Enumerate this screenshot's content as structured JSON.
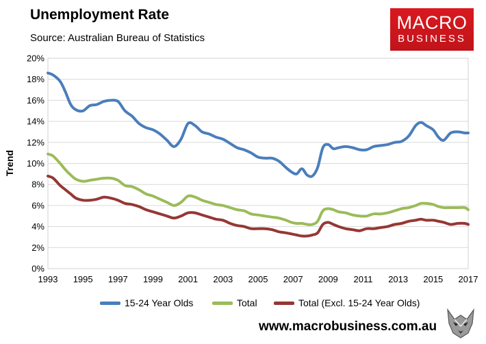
{
  "header": {
    "title": "Unemployment Rate",
    "subtitle": "Source: Australian Bureau of Statistics"
  },
  "logo": {
    "line1": "MACRO",
    "line2": "BUSINESS"
  },
  "footer": {
    "url": "www.macrobusiness.com.au"
  },
  "colors": {
    "youth": "#4a7ebb",
    "total": "#9bbb59",
    "excl": "#953735"
  },
  "chart_data": {
    "type": "line",
    "title": "Unemployment Rate",
    "ylabel": "Trend",
    "xlim": [
      1993,
      2017
    ],
    "ylim": [
      0,
      20
    ],
    "ytick_labels": [
      "0%",
      "2%",
      "4%",
      "6%",
      "8%",
      "10%",
      "12%",
      "14%",
      "16%",
      "18%",
      "20%"
    ],
    "xtick_labels": [
      "1993",
      "1995",
      "1997",
      "1999",
      "2001",
      "2003",
      "2005",
      "2007",
      "2009",
      "2011",
      "2013",
      "2015",
      "2017"
    ],
    "legend_position": "bottom",
    "series": [
      {
        "name": "15-24 Year Olds",
        "color": "#4a7ebb",
        "x": [
          1993,
          1993.3,
          1993.7,
          1994,
          1994.3,
          1994.6,
          1995,
          1995.4,
          1995.8,
          1996.2,
          1996.6,
          1997,
          1997.4,
          1997.8,
          1998.2,
          1998.6,
          1999,
          1999.4,
          1999.8,
          2000.2,
          2000.6,
          2001,
          2001.4,
          2001.8,
          2002.2,
          2002.6,
          2003,
          2003.4,
          2003.8,
          2004.2,
          2004.6,
          2005,
          2005.4,
          2005.8,
          2006.2,
          2006.6,
          2006.9,
          2007.2,
          2007.5,
          2007.8,
          2008.1,
          2008.4,
          2008.7,
          2009,
          2009.3,
          2009.6,
          2010,
          2010.4,
          2010.8,
          2011.2,
          2011.6,
          2012,
          2012.4,
          2012.8,
          2013.2,
          2013.6,
          2014,
          2014.3,
          2014.6,
          2015,
          2015.3,
          2015.6,
          2016,
          2016.4,
          2016.8,
          2017
        ],
        "y": [
          18.6,
          18.4,
          17.8,
          16.8,
          15.6,
          15.1,
          15.0,
          15.5,
          15.6,
          15.9,
          16.0,
          15.9,
          15.0,
          14.5,
          13.8,
          13.4,
          13.2,
          12.8,
          12.2,
          11.6,
          12.3,
          13.8,
          13.6,
          13.0,
          12.8,
          12.5,
          12.3,
          11.9,
          11.5,
          11.3,
          11.0,
          10.6,
          10.5,
          10.5,
          10.2,
          9.6,
          9.2,
          9.0,
          9.5,
          8.9,
          8.8,
          9.6,
          11.5,
          11.8,
          11.4,
          11.5,
          11.6,
          11.5,
          11.3,
          11.3,
          11.6,
          11.7,
          11.8,
          12.0,
          12.1,
          12.6,
          13.6,
          13.9,
          13.6,
          13.2,
          12.5,
          12.2,
          12.9,
          13.0,
          12.9,
          12.9
        ]
      },
      {
        "name": "Total",
        "color": "#9bbb59",
        "x": [
          1993,
          1993.3,
          1993.7,
          1994,
          1994.3,
          1994.6,
          1995,
          1995.4,
          1995.8,
          1996.2,
          1996.6,
          1997,
          1997.4,
          1997.8,
          1998.2,
          1998.6,
          1999,
          1999.4,
          1999.8,
          2000.2,
          2000.6,
          2001,
          2001.4,
          2001.8,
          2002.2,
          2002.6,
          2003,
          2003.4,
          2003.8,
          2004.2,
          2004.6,
          2005,
          2005.4,
          2005.8,
          2006.2,
          2006.6,
          2006.9,
          2007.2,
          2007.5,
          2007.8,
          2008.1,
          2008.4,
          2008.7,
          2009,
          2009.3,
          2009.6,
          2010,
          2010.4,
          2010.8,
          2011.2,
          2011.6,
          2012,
          2012.4,
          2012.8,
          2013.2,
          2013.6,
          2014,
          2014.3,
          2014.6,
          2015,
          2015.3,
          2015.6,
          2016,
          2016.4,
          2016.8,
          2017
        ],
        "y": [
          10.9,
          10.7,
          10.0,
          9.4,
          8.9,
          8.5,
          8.3,
          8.4,
          8.5,
          8.6,
          8.6,
          8.4,
          7.9,
          7.8,
          7.5,
          7.1,
          6.9,
          6.6,
          6.3,
          6.0,
          6.3,
          6.9,
          6.8,
          6.5,
          6.3,
          6.1,
          6.0,
          5.8,
          5.6,
          5.5,
          5.2,
          5.1,
          5.0,
          4.9,
          4.8,
          4.6,
          4.4,
          4.3,
          4.3,
          4.2,
          4.2,
          4.5,
          5.5,
          5.7,
          5.6,
          5.4,
          5.3,
          5.1,
          5.0,
          5.0,
          5.2,
          5.2,
          5.3,
          5.5,
          5.7,
          5.8,
          6.0,
          6.2,
          6.2,
          6.1,
          5.9,
          5.8,
          5.8,
          5.8,
          5.8,
          5.6
        ]
      },
      {
        "name": "Total (Excl. 15-24 Year Olds)",
        "color": "#953735",
        "x": [
          1993,
          1993.3,
          1993.7,
          1994,
          1994.3,
          1994.6,
          1995,
          1995.4,
          1995.8,
          1996.2,
          1996.6,
          1997,
          1997.4,
          1997.8,
          1998.2,
          1998.6,
          1999,
          1999.4,
          1999.8,
          2000.2,
          2000.6,
          2001,
          2001.4,
          2001.8,
          2002.2,
          2002.6,
          2003,
          2003.4,
          2003.8,
          2004.2,
          2004.6,
          2005,
          2005.4,
          2005.8,
          2006.2,
          2006.6,
          2006.9,
          2007.2,
          2007.5,
          2007.8,
          2008.1,
          2008.4,
          2008.7,
          2009,
          2009.3,
          2009.6,
          2010,
          2010.4,
          2010.8,
          2011.2,
          2011.6,
          2012,
          2012.4,
          2012.8,
          2013.2,
          2013.6,
          2014,
          2014.3,
          2014.6,
          2015,
          2015.3,
          2015.6,
          2016,
          2016.4,
          2016.8,
          2017
        ],
        "y": [
          8.8,
          8.6,
          7.9,
          7.5,
          7.1,
          6.7,
          6.5,
          6.5,
          6.6,
          6.8,
          6.7,
          6.5,
          6.2,
          6.1,
          5.9,
          5.6,
          5.4,
          5.2,
          5.0,
          4.8,
          5.0,
          5.3,
          5.3,
          5.1,
          4.9,
          4.7,
          4.6,
          4.3,
          4.1,
          4.0,
          3.8,
          3.8,
          3.8,
          3.7,
          3.5,
          3.4,
          3.3,
          3.2,
          3.1,
          3.1,
          3.2,
          3.4,
          4.2,
          4.4,
          4.2,
          4.0,
          3.8,
          3.7,
          3.6,
          3.8,
          3.8,
          3.9,
          4.0,
          4.2,
          4.3,
          4.5,
          4.6,
          4.7,
          4.6,
          4.6,
          4.5,
          4.4,
          4.2,
          4.3,
          4.3,
          4.2
        ]
      }
    ]
  }
}
